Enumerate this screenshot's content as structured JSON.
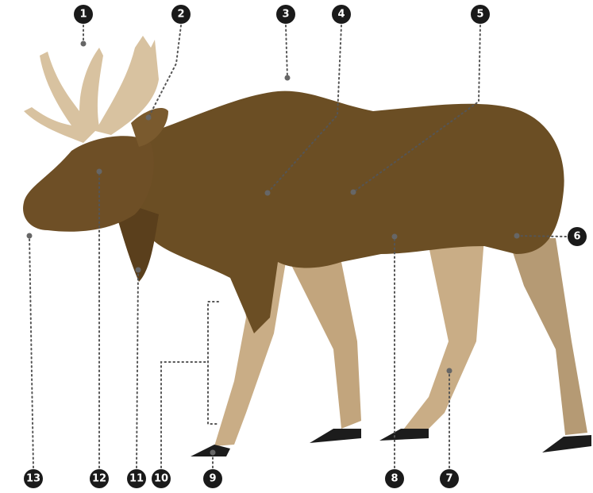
{
  "labels": [
    {
      "number": 1
    },
    {
      "number": 2
    },
    {
      "number": 3
    },
    {
      "number": 4
    },
    {
      "number": 5
    },
    {
      "number": 6
    },
    {
      "number": 7
    },
    {
      "number": 8
    },
    {
      "number": 9
    },
    {
      "number": 10
    },
    {
      "number": 11
    },
    {
      "number": 12
    },
    {
      "number": 13
    }
  ]
}
